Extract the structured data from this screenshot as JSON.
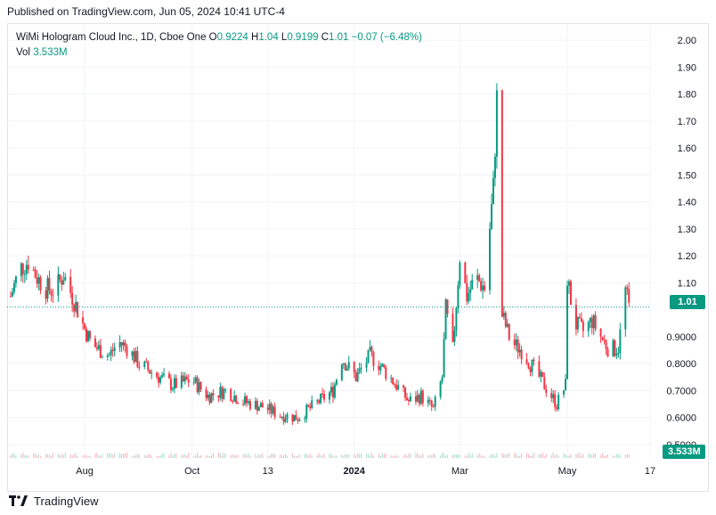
{
  "published": "Published on TradingView.com, Jun 05, 2024 10:41 UTC-4",
  "legend": {
    "symbol": "WiMi Hologram Cloud Inc., 1D, Cboe One",
    "o_label": "O",
    "o_value": "0.9224",
    "h_label": "H",
    "h_value": "1.04",
    "l_label": "L",
    "l_value": "0.9199",
    "c_label": "C",
    "c_value": "1.01",
    "change": "−0.07 (−6.48%)",
    "vol_label": "Vol",
    "vol_value": "3.533M"
  },
  "price_badge": "1.01",
  "price_badge_partial": "0",
  "volume_badge": "3.533M",
  "brand": "TradingView",
  "colors": {
    "up": "#089981",
    "down": "#f23645",
    "grid": "#f0f3fa",
    "price_line": "#089981"
  },
  "chart_data": {
    "type": "candlestick",
    "title": "WiMi Hologram Cloud Inc., 1D, Cboe One",
    "x_tick_labels": [
      "Aug",
      "Oct",
      "13",
      "2024",
      "Mar",
      "May",
      "17"
    ],
    "y_tick_labels": [
      "2.00",
      "1.90",
      "1.80",
      "1.70",
      "1.60",
      "1.50",
      "1.40",
      "1.30",
      "1.20",
      "1.10",
      "0.9000",
      "0.8000",
      "0.7000",
      "0.6000",
      "0.5000"
    ],
    "ylim": [
      0.45,
      2.03
    ],
    "last_price": 1.01,
    "grid": true,
    "approximate_close_path": [
      [
        "2023-06-20",
        1.05
      ],
      [
        "2023-06-25",
        1.15
      ],
      [
        "2023-06-30",
        1.18
      ],
      [
        "2023-07-05",
        1.12
      ],
      [
        "2023-07-10",
        1.08
      ],
      [
        "2023-07-15",
        1.07
      ],
      [
        "2023-07-20",
        1.13
      ],
      [
        "2023-07-25",
        1.05
      ],
      [
        "2023-08-01",
        0.93
      ],
      [
        "2023-08-05",
        0.87
      ],
      [
        "2023-08-10",
        0.85
      ],
      [
        "2023-08-15",
        0.83
      ],
      [
        "2023-08-20",
        0.88
      ],
      [
        "2023-08-25",
        0.86
      ],
      [
        "2023-09-01",
        0.8
      ],
      [
        "2023-09-10",
        0.76
      ],
      [
        "2023-09-20",
        0.72
      ],
      [
        "2023-10-01",
        0.74
      ],
      [
        "2023-10-10",
        0.68
      ],
      [
        "2023-10-20",
        0.7
      ],
      [
        "2023-10-30",
        0.66
      ],
      [
        "2023-11-10",
        0.64
      ],
      [
        "2023-11-20",
        0.61
      ],
      [
        "2023-11-30",
        0.6
      ],
      [
        "2023-12-10",
        0.65
      ],
      [
        "2023-12-20",
        0.7
      ],
      [
        "2023-12-25",
        0.82
      ],
      [
        "2024-01-02",
        0.75
      ],
      [
        "2024-01-10",
        0.83
      ],
      [
        "2024-01-15",
        0.8
      ],
      [
        "2024-01-25",
        0.72
      ],
      [
        "2024-02-01",
        0.66
      ],
      [
        "2024-02-08",
        0.68
      ],
      [
        "2024-02-15",
        0.63
      ],
      [
        "2024-02-20",
        0.75
      ],
      [
        "2024-02-22",
        1.0
      ],
      [
        "2024-02-26",
        0.85
      ],
      [
        "2024-03-01",
        1.2
      ],
      [
        "2024-03-05",
        1.05
      ],
      [
        "2024-03-10",
        1.12
      ],
      [
        "2024-03-15",
        1.08
      ],
      [
        "2024-03-20",
        1.45
      ],
      [
        "2024-03-22",
        1.78
      ],
      [
        "2024-03-25",
        0.98
      ],
      [
        "2024-03-30",
        0.88
      ],
      [
        "2024-04-05",
        0.85
      ],
      [
        "2024-04-12",
        0.78
      ],
      [
        "2024-04-20",
        0.7
      ],
      [
        "2024-04-25",
        0.65
      ],
      [
        "2024-04-30",
        0.72
      ],
      [
        "2024-05-01",
        1.12
      ],
      [
        "2024-05-05",
        0.95
      ],
      [
        "2024-05-10",
        0.92
      ],
      [
        "2024-05-15",
        0.96
      ],
      [
        "2024-05-20",
        0.9
      ],
      [
        "2024-05-25",
        0.85
      ],
      [
        "2024-05-30",
        0.86
      ],
      [
        "2024-06-03",
        1.07
      ],
      [
        "2024-06-05",
        1.01
      ]
    ]
  }
}
